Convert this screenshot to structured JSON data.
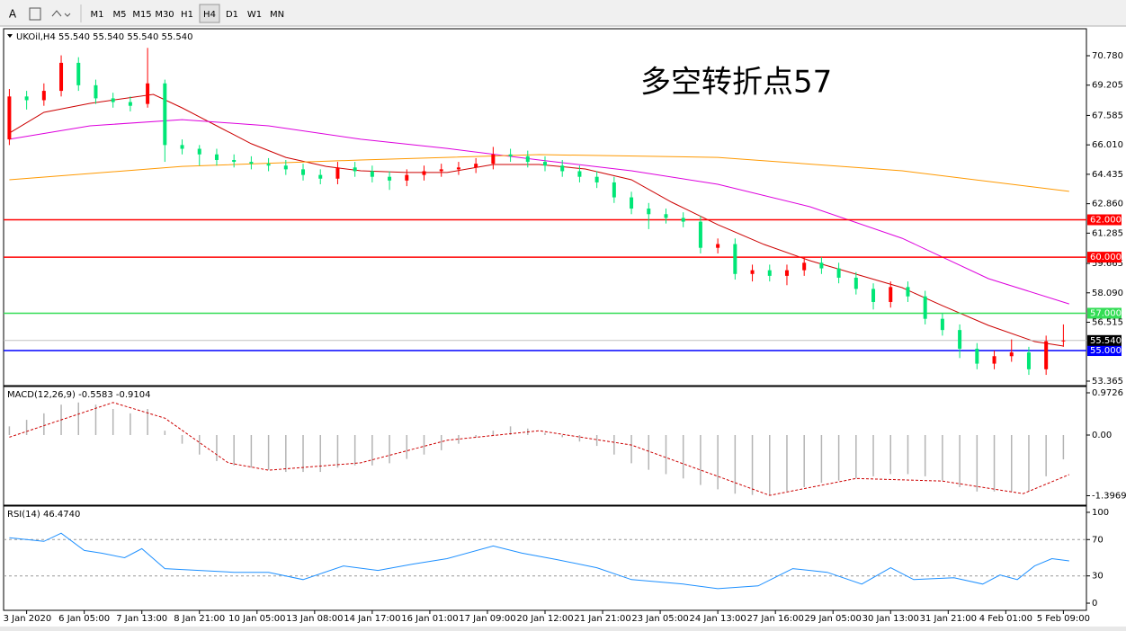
{
  "toolbar": {
    "font_button": "A",
    "timeframes": [
      "M1",
      "M5",
      "M15",
      "M30",
      "H1",
      "H4",
      "D1",
      "W1",
      "MN"
    ],
    "active": "H4"
  },
  "chart_data": [
    {
      "type": "candlestick",
      "title": "UKOil,H4  55.540 55.540 55.540 55.540",
      "annotation": {
        "text": "多空转折点57",
        "color": "#ff0000"
      },
      "xlim": [
        -1,
        187
      ],
      "ylim": [
        53.173,
        72.175
      ],
      "yticks": [
        {
          "value": 70.78,
          "label": "70.780"
        },
        {
          "value": 69.205,
          "label": "69.205"
        },
        {
          "value": 67.585,
          "label": "67.585"
        },
        {
          "value": 66.01,
          "label": "66.010"
        },
        {
          "value": 64.435,
          "label": "64.435"
        },
        {
          "value": 62.86,
          "label": "62.860"
        },
        {
          "value": 61.285,
          "label": "61.285"
        },
        {
          "value": 59.665,
          "label": "59.665"
        },
        {
          "value": 58.09,
          "label": "58.090"
        },
        {
          "value": 56.515,
          "label": "56.515"
        },
        {
          "value": 53.365,
          "label": "53.365"
        }
      ],
      "up_color": "#ff0000",
      "down_color": "#00e676",
      "x": [
        0,
        3,
        6,
        9,
        12,
        15,
        18,
        21,
        24,
        27,
        30,
        33,
        36,
        39,
        42,
        45,
        48,
        51,
        54,
        57,
        60,
        63,
        66,
        69,
        72,
        75,
        78,
        81,
        84,
        87,
        90,
        93,
        96,
        99,
        102,
        105,
        108,
        111,
        114,
        117,
        120,
        123,
        126,
        129,
        132,
        135,
        138,
        141,
        144,
        147,
        150,
        153,
        156,
        159,
        162,
        165,
        168,
        171,
        174,
        177,
        180,
        183
      ],
      "open": [
        66.3,
        68.6,
        68.4,
        68.9,
        70.4,
        69.2,
        68.5,
        68.3,
        68.2,
        69.3,
        66.0,
        65.8,
        65.5,
        65.2,
        65.1,
        65.0,
        64.9,
        64.7,
        64.4,
        64.2,
        64.8,
        64.6,
        64.3,
        64.1,
        64.4,
        64.6,
        64.7,
        64.8,
        65.0,
        65.5,
        65.4,
        65.1,
        64.9,
        64.6,
        64.3,
        64.0,
        63.2,
        62.6,
        62.3,
        62.1,
        61.9,
        60.5,
        60.7,
        59.1,
        59.3,
        59.0,
        59.3,
        59.7,
        59.4,
        58.9,
        58.3,
        57.6,
        58.4,
        57.9,
        56.7,
        56.1,
        55.1,
        54.3,
        54.7,
        54.9,
        54.0,
        55.5
      ],
      "high": [
        69.0,
        68.9,
        69.3,
        70.8,
        70.7,
        69.5,
        68.8,
        68.6,
        71.2,
        69.5,
        66.3,
        66.0,
        65.8,
        65.5,
        65.4,
        65.3,
        65.2,
        65.0,
        64.7,
        65.1,
        65.1,
        64.9,
        64.6,
        64.7,
        64.9,
        65.0,
        65.1,
        65.3,
        65.9,
        65.8,
        65.7,
        65.4,
        65.2,
        64.9,
        64.6,
        64.3,
        63.5,
        62.9,
        62.6,
        62.4,
        62.2,
        61.0,
        61.0,
        59.6,
        59.6,
        59.6,
        60.0,
        60.0,
        59.7,
        59.2,
        58.6,
        58.7,
        58.7,
        58.2,
        57.0,
        56.4,
        55.4,
        55.0,
        55.6,
        55.2,
        55.8,
        56.4
      ],
      "low": [
        66.0,
        67.9,
        68.1,
        68.6,
        68.9,
        68.2,
        68.0,
        67.8,
        68.0,
        65.1,
        65.5,
        64.9,
        64.9,
        64.8,
        64.7,
        64.6,
        64.4,
        64.1,
        63.9,
        63.9,
        64.3,
        64.0,
        63.6,
        63.8,
        64.1,
        64.3,
        64.4,
        64.5,
        64.7,
        65.1,
        64.8,
        64.6,
        64.3,
        64.0,
        63.7,
        62.9,
        62.3,
        61.5,
        61.8,
        61.6,
        60.2,
        60.2,
        58.8,
        58.7,
        58.7,
        58.5,
        59.0,
        59.1,
        58.6,
        58.0,
        57.2,
        57.3,
        57.6,
        56.4,
        55.8,
        54.6,
        54.0,
        54.0,
        54.4,
        53.7,
        53.7,
        55.2
      ],
      "close": [
        68.6,
        68.4,
        68.9,
        70.4,
        69.2,
        68.5,
        68.3,
        68.1,
        69.3,
        66.0,
        65.8,
        65.5,
        65.2,
        65.1,
        65.0,
        64.9,
        64.7,
        64.4,
        64.2,
        64.8,
        64.6,
        64.3,
        64.1,
        64.4,
        64.6,
        64.7,
        64.8,
        65.0,
        65.5,
        65.4,
        65.1,
        64.9,
        64.6,
        64.3,
        64.0,
        63.2,
        62.6,
        62.3,
        62.1,
        61.9,
        60.5,
        60.7,
        59.1,
        59.3,
        59.0,
        59.3,
        59.7,
        59.4,
        58.9,
        58.3,
        57.6,
        58.4,
        57.9,
        56.7,
        56.1,
        55.1,
        54.3,
        54.7,
        54.9,
        54.0,
        55.5,
        55.54
      ],
      "lines": [
        {
          "color": "#cc0000",
          "x": [
            0,
            6,
            14,
            25,
            30,
            36,
            42,
            48,
            55,
            61,
            69,
            76,
            84,
            92,
            100,
            108,
            115,
            123,
            131,
            139,
            147,
            155,
            162,
            170,
            178,
            183
          ],
          "values": [
            66.64,
            67.75,
            68.23,
            68.71,
            67.99,
            67.03,
            66.07,
            65.34,
            64.86,
            64.62,
            64.53,
            64.53,
            64.96,
            64.96,
            64.72,
            64.14,
            62.94,
            61.74,
            60.68,
            59.81,
            59.09,
            58.37,
            57.4,
            56.35,
            55.48,
            55.24
          ]
        },
        {
          "color": "#dd00dd",
          "x": [
            0,
            14,
            30,
            45,
            61,
            76,
            92,
            108,
            123,
            139,
            155,
            170,
            184
          ],
          "values": [
            66.31,
            67.03,
            67.36,
            67.03,
            66.31,
            65.82,
            65.2,
            64.62,
            63.9,
            62.7,
            61.01,
            58.85,
            57.5
          ]
        },
        {
          "color": "#ff9900",
          "x": [
            0,
            30,
            61,
            92,
            123,
            155,
            184
          ],
          "values": [
            64.14,
            64.86,
            65.2,
            65.49,
            65.34,
            64.62,
            63.52
          ]
        }
      ],
      "hlines": [
        {
          "value": 62,
          "label": "62.000",
          "color": "#ff0000"
        },
        {
          "value": 60,
          "label": "60.000",
          "color": "#ff0000"
        },
        {
          "value": 57,
          "label": "57.000",
          "color": "#33dd55"
        },
        {
          "value": 55,
          "label": "55.000",
          "color": "#0000ff"
        }
      ],
      "last_price": {
        "value": 55.54,
        "label": "55.540"
      }
    },
    {
      "type": "macd",
      "title": "MACD(12,26,9) -0.5583 -0.9104",
      "xlim": [
        -1,
        187
      ],
      "ylim": [
        -1.594,
        1.097
      ],
      "yticks": [
        {
          "value": 0.9726,
          "label": "0.9726"
        },
        {
          "value": 0,
          "label": "0.00"
        },
        {
          "value": -1.3969,
          "label": "-1.3969"
        }
      ],
      "series": [
        {
          "type": "histogram",
          "color": "#b4b4b4",
          "x": [
            0,
            3,
            6,
            9,
            12,
            15,
            18,
            21,
            24,
            27,
            30,
            33,
            36,
            39,
            42,
            45,
            48,
            51,
            54,
            57,
            60,
            63,
            66,
            69,
            72,
            75,
            78,
            81,
            84,
            87,
            90,
            93,
            96,
            99,
            102,
            105,
            108,
            111,
            114,
            117,
            120,
            123,
            126,
            129,
            132,
            135,
            138,
            141,
            144,
            147,
            150,
            153,
            156,
            159,
            162,
            165,
            168,
            171,
            174,
            177,
            180,
            183
          ],
          "values": [
            0.2,
            0.35,
            0.5,
            0.7,
            0.75,
            0.7,
            0.6,
            0.5,
            0.6,
            0.1,
            -0.2,
            -0.45,
            -0.6,
            -0.7,
            -0.75,
            -0.8,
            -0.85,
            -0.85,
            -0.85,
            -0.75,
            -0.7,
            -0.7,
            -0.65,
            -0.55,
            -0.45,
            -0.35,
            -0.2,
            -0.05,
            0.1,
            0.2,
            0.15,
            0.05,
            -0.05,
            -0.15,
            -0.25,
            -0.45,
            -0.65,
            -0.8,
            -0.9,
            -1.0,
            -1.15,
            -1.25,
            -1.35,
            -1.38,
            -1.38,
            -1.3,
            -1.2,
            -1.1,
            -1.05,
            -1.0,
            -0.95,
            -0.9,
            -0.9,
            -0.95,
            -1.05,
            -1.2,
            -1.3,
            -1.3,
            -1.3,
            -1.3,
            -0.95,
            -0.56
          ]
        },
        {
          "type": "line",
          "dash": true,
          "color": "#cc0000",
          "x": [
            0,
            18,
            27,
            38,
            45,
            61,
            76,
            92,
            108,
            123,
            132,
            147,
            162,
            176,
            184
          ],
          "values": [
            -0.05,
            0.75,
            0.39,
            -0.64,
            -0.81,
            -0.64,
            -0.12,
            0.1,
            -0.23,
            -0.95,
            -1.39,
            -1.0,
            -1.06,
            -1.35,
            -0.91
          ]
        }
      ]
    },
    {
      "type": "rsi",
      "title": "RSI(14) 46.4740",
      "xlim": [
        -1,
        187
      ],
      "ylim": [
        -6.9,
        105.9
      ],
      "yticks": [
        100,
        70,
        30,
        0
      ],
      "levels": [
        70,
        30
      ],
      "xticks": [
        {
          "value": 3,
          "label": "3 Jan 2020"
        },
        {
          "value": 13,
          "label": "6 Jan 05:00"
        },
        {
          "value": 23,
          "label": "7 Jan 13:00"
        },
        {
          "value": 33,
          "label": "8 Jan 21:00"
        },
        {
          "value": 43,
          "label": "10 Jan 05:00"
        },
        {
          "value": 53,
          "label": "13 Jan 08:00"
        },
        {
          "value": 63,
          "label": "14 Jan 17:00"
        },
        {
          "value": 73,
          "label": "16 Jan 01:00"
        },
        {
          "value": 83,
          "label": "17 Jan 09:00"
        },
        {
          "value": 93,
          "label": "20 Jan 12:00"
        },
        {
          "value": 103,
          "label": "21 Jan 21:00"
        },
        {
          "value": 113,
          "label": "23 Jan 05:00"
        },
        {
          "value": 123,
          "label": "24 Jan 13:00"
        },
        {
          "value": 133,
          "label": "27 Jan 16:00"
        },
        {
          "value": 143,
          "label": "29 Jan 05:00"
        },
        {
          "value": 153,
          "label": "30 Jan 13:00"
        },
        {
          "value": 163,
          "label": "31 Jan 21:00"
        },
        {
          "value": 173,
          "label": "4 Feb 01:00"
        },
        {
          "value": 183,
          "label": "5 Feb 09:00"
        }
      ],
      "series": [
        {
          "type": "line",
          "color": "#1e90ff",
          "x": [
            0,
            3,
            6,
            9,
            13,
            16,
            20,
            23,
            27,
            33,
            39,
            45,
            51,
            58,
            64,
            70,
            76,
            84,
            89,
            95,
            102,
            108,
            117,
            123,
            130,
            136,
            142,
            148,
            153,
            157,
            164,
            169,
            172,
            175,
            178,
            181,
            184
          ],
          "values": [
            72,
            70,
            68,
            77,
            58,
            55,
            50,
            60,
            38,
            36,
            34,
            34,
            26,
            41,
            36,
            43,
            49,
            63,
            55,
            48,
            39,
            26,
            21,
            16,
            19,
            38,
            34,
            21,
            39,
            26,
            28,
            21,
            31,
            26,
            41,
            49,
            46.5
          ]
        }
      ]
    }
  ]
}
